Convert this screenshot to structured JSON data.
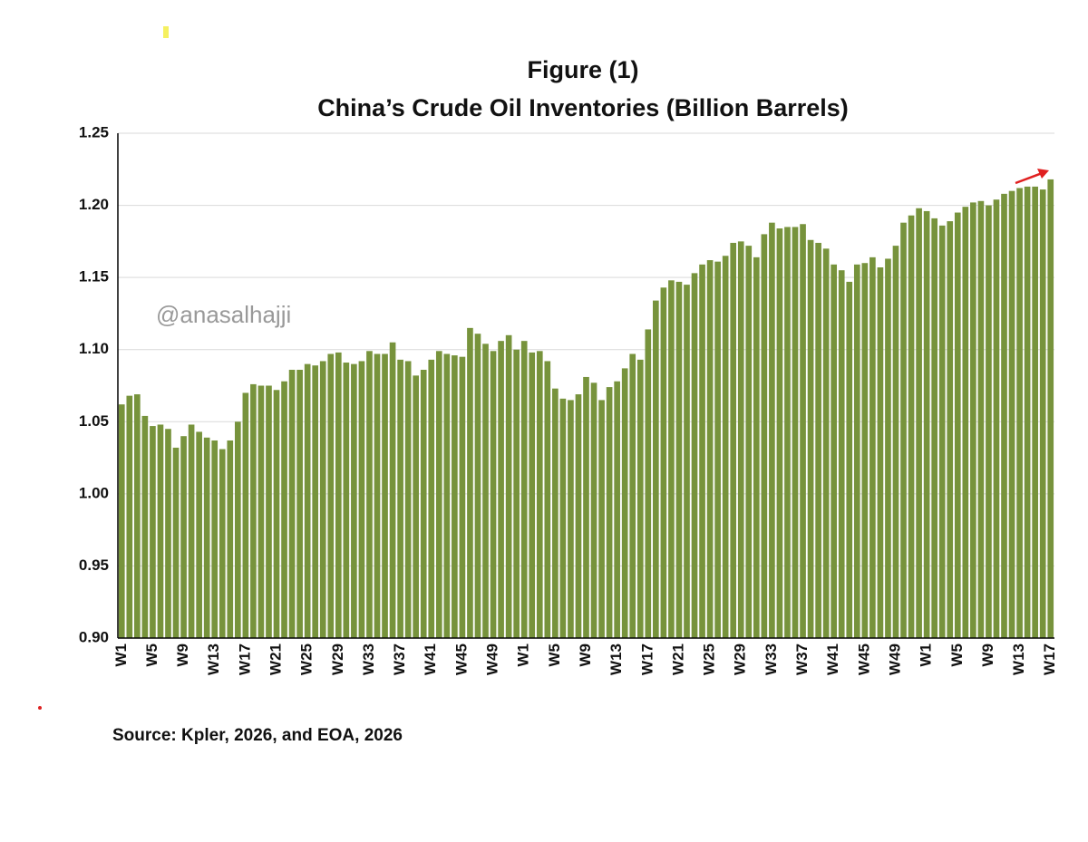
{
  "chart_data": {
    "type": "bar",
    "title": [
      "Figure (1)",
      "China’s Crude Oil Inventories (Billion Barrels)"
    ],
    "watermark": "@anasalhajji",
    "source": "Source: Kpler, 2026, and EOA, 2026",
    "color": "#77933c",
    "grid": true,
    "ylim": [
      0.9,
      1.25
    ],
    "yticks": [
      {
        "value": 0.9,
        "label": "0.90"
      },
      0.95,
      {
        "value": 1.0,
        "label": "1.00"
      },
      1.05,
      {
        "value": 1.1,
        "label": "1.10"
      },
      1.15,
      {
        "value": 1.2,
        "label": "1.20"
      },
      1.25
    ],
    "categories": [
      "W1",
      null,
      null,
      null,
      "W5",
      null,
      null,
      null,
      "W9",
      null,
      null,
      null,
      "W13",
      null,
      null,
      null,
      "W17",
      null,
      null,
      null,
      "W21",
      null,
      null,
      null,
      "W25",
      null,
      null,
      null,
      "W29",
      null,
      null,
      null,
      "W33",
      null,
      null,
      null,
      "W37",
      null,
      null,
      null,
      "W41",
      null,
      null,
      null,
      "W45",
      null,
      null,
      null,
      "W49",
      null,
      null,
      null,
      "W1",
      null,
      null,
      null,
      "W5",
      null,
      null,
      null,
      "W9",
      null,
      null,
      null,
      "W13",
      null,
      null,
      null,
      "W17",
      null,
      null,
      null,
      "W21",
      null,
      null,
      null,
      "W25",
      null,
      null,
      null,
      "W29",
      null,
      null,
      null,
      "W33",
      null,
      null,
      null,
      "W37",
      null,
      null,
      null,
      "W41",
      null,
      null,
      null,
      "W45",
      null,
      null,
      null,
      "W49",
      null,
      null,
      null,
      "W1",
      null,
      null,
      null,
      "W5",
      null,
      null,
      null,
      "W9",
      null,
      null,
      null,
      "W13",
      null,
      null,
      null,
      "W17"
    ],
    "values": [
      1.062,
      1.068,
      1.069,
      1.054,
      1.047,
      1.048,
      1.045,
      1.032,
      1.04,
      1.048,
      1.043,
      1.039,
      1.037,
      1.031,
      1.037,
      1.05,
      1.07,
      1.076,
      1.075,
      1.075,
      1.072,
      1.078,
      1.086,
      1.086,
      1.09,
      1.089,
      1.092,
      1.097,
      1.098,
      1.091,
      1.09,
      1.092,
      1.099,
      1.097,
      1.097,
      1.105,
      1.093,
      1.092,
      1.082,
      1.086,
      1.093,
      1.099,
      1.097,
      1.096,
      1.095,
      1.115,
      1.111,
      1.104,
      1.099,
      1.106,
      1.11,
      1.1,
      1.106,
      1.098,
      1.099,
      1.092,
      1.073,
      1.066,
      1.065,
      1.069,
      1.081,
      1.077,
      1.065,
      1.074,
      1.078,
      1.087,
      1.097,
      1.093,
      1.114,
      1.134,
      1.143,
      1.148,
      1.147,
      1.145,
      1.153,
      1.159,
      1.162,
      1.161,
      1.165,
      1.174,
      1.175,
      1.172,
      1.164,
      1.18,
      1.188,
      1.184,
      1.185,
      1.185,
      1.187,
      1.176,
      1.174,
      1.17,
      1.159,
      1.155,
      1.147,
      1.159,
      1.16,
      1.164,
      1.157,
      1.163,
      1.172,
      1.188,
      1.193,
      1.198,
      1.196,
      1.191,
      1.186,
      1.189,
      1.195,
      1.199,
      1.202,
      1.203,
      1.2,
      1.204,
      1.208,
      1.21,
      1.212,
      1.213,
      1.213,
      1.211,
      1.218
    ]
  }
}
